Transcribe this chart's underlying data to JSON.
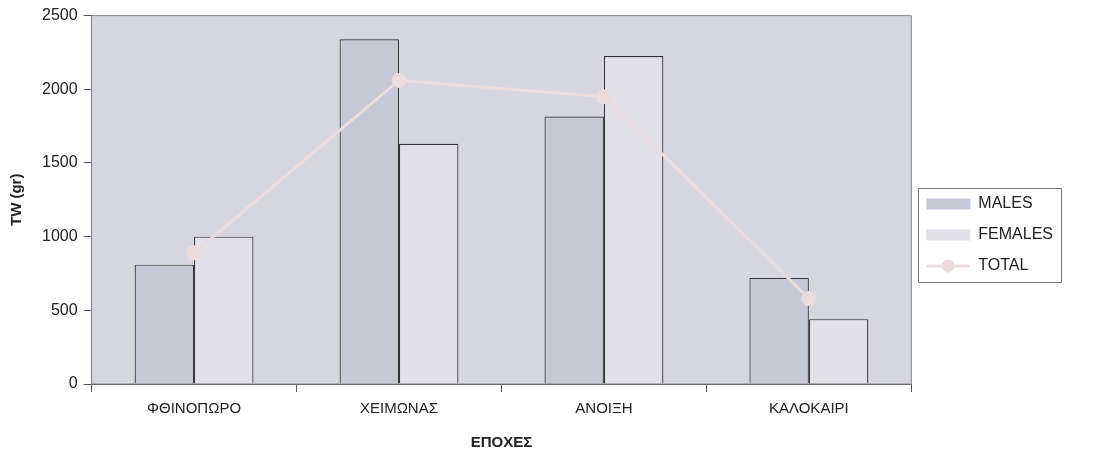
{
  "chart_data": {
    "type": "bar",
    "categories": [
      "ΦΘΙΝΟΠΩΡΟ",
      "ΧΕΙΜΩΝΑΣ",
      "ΑΝΟΙΞΗ",
      "ΚΑΛΟΚΑΙΡΙ"
    ],
    "series": [
      {
        "name": "MALES",
        "color": "#c6c8d6",
        "values": [
          810,
          2340,
          1815,
          720
        ]
      },
      {
        "name": "FEMALES",
        "color": "#e2e1e8",
        "values": [
          1000,
          1630,
          2225,
          440
        ]
      },
      {
        "name": "TOTAL",
        "type": "line",
        "color": "#e8dcdc",
        "values": [
          890,
          2060,
          1950,
          580
        ]
      }
    ],
    "xlabel": "ΕΠΟΧΕΣ",
    "ylabel": "TW (gr)",
    "ylim": [
      0,
      2500
    ],
    "yticks": [
      0,
      500,
      1000,
      1500,
      2000,
      2500
    ],
    "grid": false,
    "legend": "right",
    "marker": "circle",
    "line_style": "solid"
  }
}
